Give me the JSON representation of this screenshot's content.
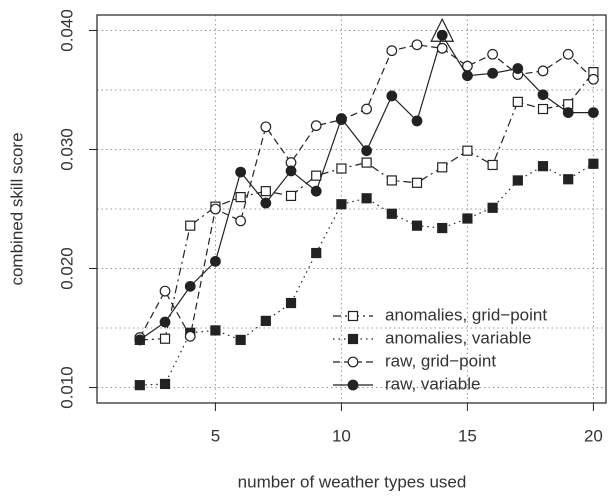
{
  "chart_data": {
    "type": "line",
    "xlabel": "number of weather types used",
    "ylabel": "combined skill score",
    "x": [
      2,
      3,
      4,
      5,
      6,
      7,
      8,
      9,
      10,
      11,
      12,
      13,
      14,
      15,
      16,
      17,
      18,
      19,
      20
    ],
    "xlim": [
      0.3,
      20.5
    ],
    "ylim": [
      0.0087,
      0.0413
    ],
    "xticks": [
      5,
      10,
      15,
      20
    ],
    "yticks": [
      {
        "value": 0.01,
        "label": "0.010"
      },
      {
        "value": 0.02,
        "label": "0.020"
      },
      {
        "value": 0.03,
        "label": "0.030"
      },
      {
        "value": 0.04,
        "label": "0.040"
      }
    ],
    "ygrid": [
      0.01,
      0.015,
      0.02,
      0.025,
      0.03,
      0.035,
      0.04
    ],
    "grid": true,
    "legend": "bottom-right",
    "series": [
      {
        "name": "anomalies, grid−point",
        "color": "#222222",
        "marker": "open-square",
        "line": "dashdot",
        "values": [
          0.014,
          0.0141,
          0.0236,
          0.0252,
          0.026,
          0.0265,
          0.0261,
          0.0278,
          0.0284,
          0.0289,
          0.0274,
          0.0272,
          0.0285,
          0.0299,
          0.0287,
          0.034,
          0.0334,
          0.0338,
          0.0365
        ]
      },
      {
        "name": "anomalies, variable",
        "color": "#222222",
        "marker": "filled-square",
        "line": "dotted",
        "values": [
          0.0102,
          0.0103,
          0.0146,
          0.0148,
          0.014,
          0.0156,
          0.0171,
          0.0213,
          0.0254,
          0.0259,
          0.0246,
          0.0236,
          0.0234,
          0.0242,
          0.0251,
          0.0274,
          0.0286,
          0.0275,
          0.0288
        ]
      },
      {
        "name": "raw, grid−point",
        "color": "#222222",
        "marker": "open-circle",
        "line": "dashed",
        "values": [
          0.0142,
          0.0181,
          0.0143,
          0.025,
          0.024,
          0.0319,
          0.0289,
          0.032,
          0.0325,
          0.0334,
          0.0383,
          0.0388,
          0.0385,
          0.037,
          0.038,
          0.0363,
          0.0366,
          0.038,
          0.0359
        ]
      },
      {
        "name": "raw, variable",
        "color": "#222222",
        "marker": "filled-circle",
        "line": "solid",
        "values": [
          0.014,
          0.0155,
          0.0185,
          0.0206,
          0.0281,
          0.0255,
          0.0282,
          0.0265,
          0.0326,
          0.0299,
          0.0345,
          0.0324,
          0.0396,
          0.0362,
          0.0364,
          0.0368,
          0.0346,
          0.0331,
          0.0331
        ]
      }
    ]
  }
}
